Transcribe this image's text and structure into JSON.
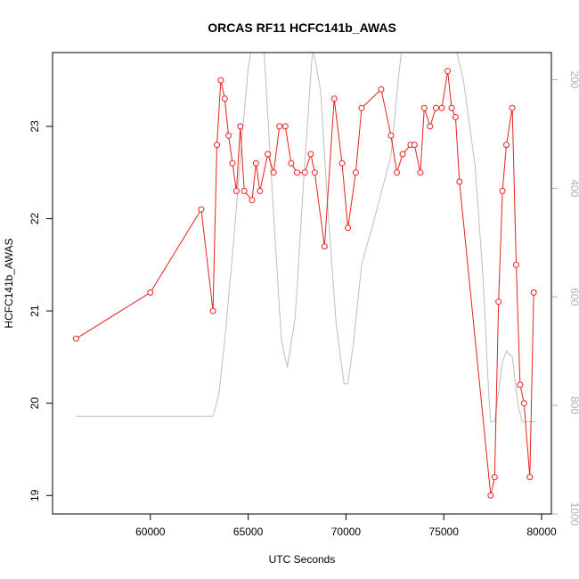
{
  "chart_data": {
    "type": "line",
    "title": "ORCAS RF11 HCFC141b_AWAS",
    "xlabel": "UTC Seconds",
    "ylabel": "HCFC141b_AWAS",
    "xlim": [
      55000,
      80500
    ],
    "ylim": [
      18.8,
      23.8
    ],
    "y2lim": [
      1000,
      150
    ],
    "xticks": [
      60000,
      65000,
      70000,
      75000,
      80000
    ],
    "yticks": [
      19,
      20,
      21,
      22,
      23
    ],
    "y2ticks": [
      200,
      400,
      600,
      800,
      1000
    ],
    "grid": false,
    "series": [
      {
        "color": "#e8201c",
        "marker": "open-circle",
        "points": [
          [
            56200,
            20.7
          ],
          [
            60000,
            21.2
          ],
          [
            62600,
            22.1
          ],
          [
            63200,
            21.0
          ],
          [
            63400,
            22.8
          ],
          [
            63600,
            23.5
          ],
          [
            63800,
            23.3
          ],
          [
            64000,
            22.9
          ],
          [
            64200,
            22.6
          ],
          [
            64400,
            22.3
          ],
          [
            64600,
            23.0
          ],
          [
            64800,
            22.3
          ],
          [
            65200,
            22.2
          ],
          [
            65400,
            22.6
          ],
          [
            65600,
            22.3
          ],
          [
            66000,
            22.7
          ],
          [
            66300,
            22.5
          ],
          [
            66600,
            23.0
          ],
          [
            66900,
            23.0
          ],
          [
            67200,
            22.6
          ],
          [
            67500,
            22.5
          ],
          [
            67900,
            22.5
          ],
          [
            68200,
            22.7
          ],
          [
            68400,
            22.5
          ],
          [
            68900,
            21.7
          ],
          [
            69400,
            23.3
          ],
          [
            69800,
            22.6
          ],
          [
            70100,
            21.9
          ],
          [
            70500,
            22.5
          ],
          [
            70800,
            23.2
          ],
          [
            71800,
            23.4
          ],
          [
            72300,
            22.9
          ],
          [
            72600,
            22.5
          ],
          [
            72900,
            22.7
          ],
          [
            73300,
            22.8
          ],
          [
            73500,
            22.8
          ],
          [
            73800,
            22.5
          ],
          [
            74000,
            23.2
          ],
          [
            74300,
            23.0
          ],
          [
            74600,
            23.2
          ],
          [
            74900,
            23.2
          ],
          [
            75200,
            23.6
          ],
          [
            75400,
            23.2
          ],
          [
            75600,
            23.1
          ],
          [
            75800,
            22.4
          ],
          [
            77400,
            19.0
          ],
          [
            77600,
            19.2
          ],
          [
            77800,
            21.1
          ],
          [
            78000,
            22.3
          ],
          [
            78200,
            22.8
          ],
          [
            78500,
            23.2
          ],
          [
            78700,
            21.5
          ],
          [
            78900,
            20.2
          ],
          [
            79100,
            20.0
          ],
          [
            79400,
            19.2
          ],
          [
            79600,
            21.2
          ]
        ]
      },
      {
        "color": "#bebebe",
        "axis": "right",
        "points": [
          [
            56200,
            820
          ],
          [
            63200,
            820
          ],
          [
            63500,
            780
          ],
          [
            63800,
            680
          ],
          [
            64300,
            480
          ],
          [
            64700,
            300
          ],
          [
            65000,
            180
          ],
          [
            65300,
            110
          ],
          [
            65800,
            140
          ],
          [
            66300,
            450
          ],
          [
            66700,
            680
          ],
          [
            67000,
            730
          ],
          [
            67400,
            640
          ],
          [
            67900,
            350
          ],
          [
            68300,
            140
          ],
          [
            68700,
            220
          ],
          [
            69100,
            450
          ],
          [
            69500,
            650
          ],
          [
            69900,
            760
          ],
          [
            70100,
            760
          ],
          [
            70400,
            680
          ],
          [
            70800,
            540
          ],
          [
            71500,
            450
          ],
          [
            72300,
            340
          ],
          [
            72700,
            190
          ],
          [
            73000,
            100
          ],
          [
            73300,
            120
          ],
          [
            73500,
            120
          ],
          [
            73700,
            80
          ],
          [
            74200,
            80
          ],
          [
            74500,
            120
          ],
          [
            74700,
            120
          ],
          [
            75200,
            80
          ],
          [
            75600,
            140
          ],
          [
            76000,
            200
          ],
          [
            76600,
            360
          ],
          [
            77000,
            560
          ],
          [
            77300,
            780
          ],
          [
            77400,
            830
          ],
          [
            77600,
            830
          ],
          [
            78000,
            720
          ],
          [
            78200,
            700
          ],
          [
            78500,
            710
          ],
          [
            78800,
            800
          ],
          [
            79000,
            830
          ],
          [
            79700,
            830
          ]
        ]
      }
    ]
  }
}
